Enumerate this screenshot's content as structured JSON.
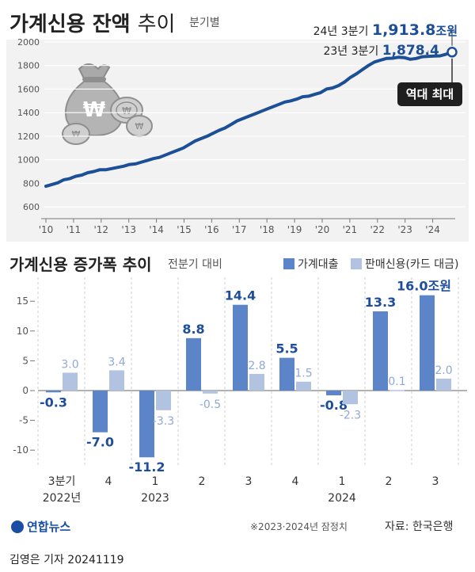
{
  "title": {
    "bold": "가계신용 잔액",
    "light": "추이"
  },
  "subtitle": "분기별",
  "colors": {
    "line": "#1d4f96",
    "loan": "#5c84c8",
    "sales": "#b2c3e2",
    "card_bg": "#f2f2f2"
  },
  "icons": {
    "illustration": "money-bag-coins-icon",
    "logo": "yonhap-logo-icon"
  },
  "line_annotations": {
    "latest": {
      "label": "24년 3분기",
      "value": "1,913.8",
      "unit": "조원"
    },
    "prev_year": {
      "label": "23년 3분기",
      "value": "1,878.4"
    },
    "record": "역대 최대"
  },
  "bar_section": {
    "title": "가계신용 증가폭 추이",
    "subtitle": "전분기 대비",
    "legend": [
      "가계대출",
      "판매신용(카드 대금)"
    ],
    "value_unit": "조원"
  },
  "footnote": "※2023·2024년 잠정치",
  "source": "자료: 한국은행",
  "logo_text": "연합뉴스",
  "credit": "김영은 기자  20241119",
  "chart_data": [
    {
      "type": "line",
      "title": "가계신용 잔액 추이",
      "x_ticks": [
        "'10",
        "'11",
        "'12",
        "'13",
        "'14",
        "'15",
        "'16",
        "'17",
        "'18",
        "'19",
        "'20",
        "'21",
        "'22",
        "'23",
        "'24"
      ],
      "y_ticks": [
        600,
        800,
        1000,
        1200,
        1400,
        1600,
        1800,
        2000
      ],
      "ylim": [
        500,
        2020
      ],
      "grid": true,
      "series": [
        {
          "values": [
            775,
            790,
            805,
            830,
            840,
            860,
            870,
            890,
            900,
            915,
            915,
            925,
            935,
            945,
            960,
            965,
            980,
            995,
            1010,
            1020,
            1040,
            1060,
            1080,
            1100,
            1130,
            1160,
            1180,
            1200,
            1225,
            1250,
            1270,
            1300,
            1330,
            1350,
            1370,
            1390,
            1410,
            1430,
            1450,
            1470,
            1490,
            1500,
            1515,
            1535,
            1540,
            1555,
            1570,
            1600,
            1610,
            1630,
            1660,
            1700,
            1730,
            1765,
            1800,
            1830,
            1845,
            1860,
            1862,
            1870,
            1867,
            1853,
            1860,
            1875,
            1878.4,
            1880,
            1882,
            1896,
            1913.8
          ]
        }
      ]
    },
    {
      "type": "bar",
      "title": "가계신용 증가폭 추이",
      "categories": [
        "3분기",
        "4",
        "1",
        "2",
        "3",
        "4",
        "1",
        "2",
        "3"
      ],
      "year_labels": [
        "2022년",
        "2023",
        "2024"
      ],
      "y_ticks": [
        -10,
        -5,
        0,
        5,
        10,
        15
      ],
      "ylim": [
        -12,
        17
      ],
      "series": [
        {
          "name": "가계대출",
          "values": [
            -0.3,
            -7.0,
            -11.2,
            8.8,
            14.4,
            5.5,
            -0.8,
            13.3,
            16.0
          ]
        },
        {
          "name": "판매신용(카드 대금)",
          "values": [
            3.0,
            3.4,
            -3.3,
            -0.5,
            2.8,
            1.5,
            -2.3,
            0.1,
            2.0
          ]
        }
      ]
    }
  ]
}
